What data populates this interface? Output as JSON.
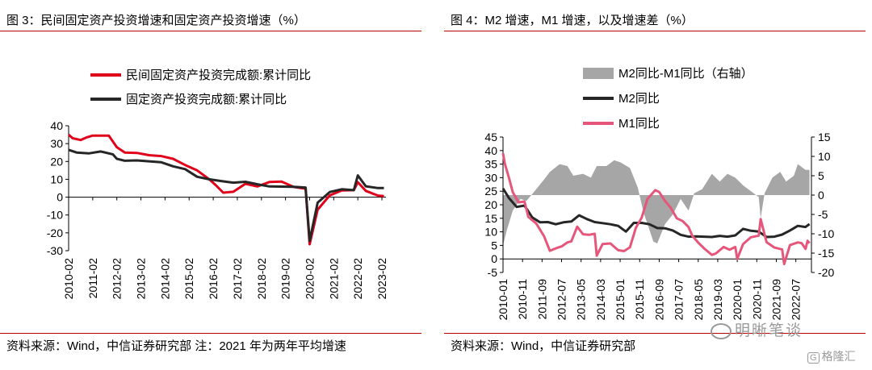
{
  "figure_left": {
    "title": "图 3：民间固定资产投资增速和固定资产投资增速（%）",
    "source": "资料来源：Wind，中信证券研究部  注：2021 年为两年平均增速"
  },
  "figure_right": {
    "title": "图 4：M2 增速，M1 增速，以及增速差（%）",
    "source": "资料来源：Wind，中信证券研究部"
  },
  "watermark": {
    "text": "明晰笔谈",
    "icon": "wechat-icon"
  },
  "badge": {
    "box": "G",
    "text": "格隆汇"
  },
  "colors": {
    "red": "#e0001a",
    "black": "#262626",
    "pink": "#e6567a",
    "gray": "#a6a6a6",
    "rule": "#c00000"
  },
  "chart_data": [
    {
      "type": "line",
      "ylim": [
        -30,
        40
      ],
      "yticks": [
        -30,
        -20,
        -10,
        0,
        10,
        20,
        30,
        40
      ],
      "xlim": [
        "2010-02",
        "2023-04"
      ],
      "xticks": [
        "2010-02",
        "2011-02",
        "2012-02",
        "2013-02",
        "2014-02",
        "2015-02",
        "2016-02",
        "2017-02",
        "2018-02",
        "2019-02",
        "2020-02",
        "2021-02",
        "2022-02",
        "2023-02"
      ],
      "legend_position": "top-left",
      "series": [
        {
          "name": "民间固定资产投资完成额:累计同比",
          "color": "#e0001a",
          "points": [
            [
              "2010-02",
              35
            ],
            [
              "2010-04",
              33
            ],
            [
              "2010-08",
              32
            ],
            [
              "2010-11",
              33.5
            ],
            [
              "2011-02",
              34.5
            ],
            [
              "2011-06",
              34.5
            ],
            [
              "2011-10",
              34.5
            ],
            [
              "2012-02",
              28
            ],
            [
              "2012-06",
              25
            ],
            [
              "2012-12",
              24.8
            ],
            [
              "2013-06",
              23.5
            ],
            [
              "2013-12",
              23
            ],
            [
              "2014-06",
              21.5
            ],
            [
              "2014-12",
              18
            ],
            [
              "2015-06",
              15
            ],
            [
              "2015-12",
              10
            ],
            [
              "2016-03",
              7
            ],
            [
              "2016-07",
              2.5
            ],
            [
              "2016-12",
              3
            ],
            [
              "2017-06",
              7.5
            ],
            [
              "2017-12",
              6
            ],
            [
              "2018-06",
              8.5
            ],
            [
              "2018-12",
              8.7
            ],
            [
              "2019-06",
              5.7
            ],
            [
              "2019-12",
              4.7
            ],
            [
              "2020-02",
              -26.4
            ],
            [
              "2020-06",
              -7
            ],
            [
              "2020-12",
              1
            ],
            [
              "2021-06",
              3.8
            ],
            [
              "2021-12",
              3.9
            ],
            [
              "2022-02",
              8.4
            ],
            [
              "2022-06",
              3.5
            ],
            [
              "2022-12",
              0.9
            ],
            [
              "2023-03",
              0.6
            ]
          ]
        },
        {
          "name": "固定资产投资完成额:累计同比",
          "color": "#262626",
          "points": [
            [
              "2010-02",
              26.5
            ],
            [
              "2010-06",
              25
            ],
            [
              "2010-12",
              24.5
            ],
            [
              "2011-06",
              25.6
            ],
            [
              "2011-12",
              24
            ],
            [
              "2012-02",
              21.5
            ],
            [
              "2012-06",
              20.4
            ],
            [
              "2012-12",
              20.6
            ],
            [
              "2013-06",
              20.1
            ],
            [
              "2013-12",
              19.6
            ],
            [
              "2014-06",
              17.3
            ],
            [
              "2014-12",
              15.7
            ],
            [
              "2015-06",
              11.4
            ],
            [
              "2015-12",
              10
            ],
            [
              "2016-06",
              9
            ],
            [
              "2016-12",
              8.1
            ],
            [
              "2017-06",
              8.6
            ],
            [
              "2017-12",
              7.2
            ],
            [
              "2018-06",
              6
            ],
            [
              "2018-12",
              5.9
            ],
            [
              "2019-06",
              5.8
            ],
            [
              "2019-12",
              5.4
            ],
            [
              "2020-02",
              -24.5
            ],
            [
              "2020-06",
              -3.1
            ],
            [
              "2020-12",
              2.9
            ],
            [
              "2021-06",
              4.4
            ],
            [
              "2021-12",
              3.9
            ],
            [
              "2022-02",
              12.2
            ],
            [
              "2022-06",
              6.1
            ],
            [
              "2022-12",
              5.1
            ],
            [
              "2023-03",
              5.1
            ]
          ]
        }
      ]
    },
    {
      "type": "line",
      "ylim": [
        -5,
        45
      ],
      "yticks": [
        -5,
        0,
        5,
        10,
        15,
        20,
        25,
        30,
        35,
        40,
        45
      ],
      "ylim_right": [
        -20,
        15
      ],
      "yticks_right": [
        -20,
        -15,
        -10,
        -5,
        0,
        5,
        10,
        15
      ],
      "xlim": [
        "2010-01",
        "2023-03"
      ],
      "xticks": [
        "2010-01",
        "2010-11",
        "2011-09",
        "2012-07",
        "2013-05",
        "2014-03",
        "2015-01",
        "2015-11",
        "2016-09",
        "2017-07",
        "2018-05",
        "2019-03",
        "2020-01",
        "2020-11",
        "2021-09",
        "2022-07"
      ],
      "legend_position": "top-center",
      "series": [
        {
          "name": "M2同比-M1同比（右轴）",
          "color": "#a6a6a6",
          "kind": "area",
          "axis": "right",
          "points": [
            [
              "2010-01",
              -13
            ],
            [
              "2010-03",
              -9
            ],
            [
              "2010-06",
              -4
            ],
            [
              "2010-10",
              -1
            ],
            [
              "2011-01",
              -1.5
            ],
            [
              "2011-06",
              1.5
            ],
            [
              "2011-10",
              4
            ],
            [
              "2012-01",
              6
            ],
            [
              "2012-06",
              8
            ],
            [
              "2012-10",
              7.5
            ],
            [
              "2013-01",
              5
            ],
            [
              "2013-06",
              5.5
            ],
            [
              "2013-10",
              4.5
            ],
            [
              "2014-01",
              7.5
            ],
            [
              "2014-06",
              7.5
            ],
            [
              "2014-10",
              9
            ],
            [
              "2015-01",
              8.5
            ],
            [
              "2015-06",
              7
            ],
            [
              "2015-10",
              2
            ],
            [
              "2016-01",
              -4.5
            ],
            [
              "2016-06",
              -12
            ],
            [
              "2016-08",
              -12.5
            ],
            [
              "2016-12",
              -7.5
            ],
            [
              "2017-04",
              -5
            ],
            [
              "2017-08",
              -1
            ],
            [
              "2017-12",
              -4
            ],
            [
              "2018-03",
              0.5
            ],
            [
              "2018-07",
              1.5
            ],
            [
              "2018-12",
              5.5
            ],
            [
              "2019-04",
              3.5
            ],
            [
              "2019-08",
              5.5
            ],
            [
              "2019-12",
              4.5
            ],
            [
              "2020-04",
              2.5
            ],
            [
              "2020-08",
              1
            ],
            [
              "2020-12",
              -0.5
            ],
            [
              "2021-01",
              -6
            ],
            [
              "2021-03",
              0.5
            ],
            [
              "2021-07",
              4.5
            ],
            [
              "2021-11",
              6
            ],
            [
              "2022-02",
              3.5
            ],
            [
              "2022-06",
              5
            ],
            [
              "2022-08",
              8
            ],
            [
              "2022-12",
              6.5
            ],
            [
              "2023-02",
              6.5
            ]
          ]
        },
        {
          "name": "M2同比",
          "color": "#262626",
          "points": [
            [
              "2010-01",
              26
            ],
            [
              "2010-04",
              22.5
            ],
            [
              "2010-08",
              19.2
            ],
            [
              "2010-12",
              19.7
            ],
            [
              "2011-04",
              15.3
            ],
            [
              "2011-08",
              13.5
            ],
            [
              "2011-12",
              13.6
            ],
            [
              "2012-04",
              12.8
            ],
            [
              "2012-08",
              13.5
            ],
            [
              "2012-12",
              13.8
            ],
            [
              "2013-04",
              16.1
            ],
            [
              "2013-08",
              14.7
            ],
            [
              "2013-12",
              13.6
            ],
            [
              "2014-04",
              13.2
            ],
            [
              "2014-08",
              12.8
            ],
            [
              "2014-12",
              12.2
            ],
            [
              "2015-04",
              10.1
            ],
            [
              "2015-08",
              13.3
            ],
            [
              "2015-12",
              13.3
            ],
            [
              "2016-04",
              12.8
            ],
            [
              "2016-08",
              11.4
            ],
            [
              "2016-12",
              11.3
            ],
            [
              "2017-04",
              10.5
            ],
            [
              "2017-08",
              8.9
            ],
            [
              "2017-12",
              8.2
            ],
            [
              "2018-04",
              8.3
            ],
            [
              "2018-08",
              8.2
            ],
            [
              "2018-12",
              8.1
            ],
            [
              "2019-04",
              8.5
            ],
            [
              "2019-08",
              8.2
            ],
            [
              "2019-12",
              8.7
            ],
            [
              "2020-04",
              11.1
            ],
            [
              "2020-08",
              10.4
            ],
            [
              "2020-12",
              10.1
            ],
            [
              "2021-04",
              8.1
            ],
            [
              "2021-08",
              8.2
            ],
            [
              "2021-12",
              9
            ],
            [
              "2022-04",
              10.5
            ],
            [
              "2022-08",
              12.2
            ],
            [
              "2022-12",
              11.8
            ],
            [
              "2023-02",
              12.9
            ]
          ]
        },
        {
          "name": "M1同比",
          "color": "#e6567a",
          "points": [
            [
              "2010-01",
              39
            ],
            [
              "2010-02",
              35
            ],
            [
              "2010-04",
              30
            ],
            [
              "2010-06",
              24.6
            ],
            [
              "2010-09",
              20.9
            ],
            [
              "2010-12",
              21.2
            ],
            [
              "2011-02",
              15.5
            ],
            [
              "2011-06",
              13.1
            ],
            [
              "2011-10",
              8.4
            ],
            [
              "2012-01",
              3
            ],
            [
              "2012-04",
              3.9
            ],
            [
              "2012-07",
              4.6
            ],
            [
              "2012-10",
              6.1
            ],
            [
              "2012-12",
              6.5
            ],
            [
              "2013-03",
              11.9
            ],
            [
              "2013-06",
              9.1
            ],
            [
              "2013-09",
              8.9
            ],
            [
              "2013-12",
              9.3
            ],
            [
              "2014-01",
              1.2
            ],
            [
              "2014-04",
              5.5
            ],
            [
              "2014-08",
              5.7
            ],
            [
              "2014-12",
              3.2
            ],
            [
              "2015-03",
              2.9
            ],
            [
              "2015-06",
              4.3
            ],
            [
              "2015-09",
              11.4
            ],
            [
              "2015-12",
              15.2
            ],
            [
              "2016-03",
              22.1
            ],
            [
              "2016-06",
              24.6
            ],
            [
              "2016-07",
              25.4
            ],
            [
              "2016-09",
              24.7
            ],
            [
              "2016-12",
              21.4
            ],
            [
              "2017-03",
              18.8
            ],
            [
              "2017-06",
              15
            ],
            [
              "2017-09",
              14
            ],
            [
              "2017-12",
              11.8
            ],
            [
              "2018-02",
              8.5
            ],
            [
              "2018-05",
              6
            ],
            [
              "2018-08",
              3.9
            ],
            [
              "2018-12",
              1.5
            ],
            [
              "2019-02",
              2
            ],
            [
              "2019-06",
              4.4
            ],
            [
              "2019-09",
              3.4
            ],
            [
              "2019-12",
              4.4
            ],
            [
              "2020-01",
              0
            ],
            [
              "2020-04",
              5.5
            ],
            [
              "2020-08",
              8
            ],
            [
              "2020-12",
              8.6
            ],
            [
              "2021-01",
              14.7
            ],
            [
              "2021-04",
              6.2
            ],
            [
              "2021-08",
              4.2
            ],
            [
              "2021-12",
              3.5
            ],
            [
              "2022-01",
              -1.9
            ],
            [
              "2022-04",
              5.1
            ],
            [
              "2022-08",
              6.1
            ],
            [
              "2022-10",
              5.8
            ],
            [
              "2022-12",
              3.7
            ],
            [
              "2023-01",
              6.7
            ],
            [
              "2023-02",
              5.8
            ]
          ]
        }
      ]
    }
  ]
}
